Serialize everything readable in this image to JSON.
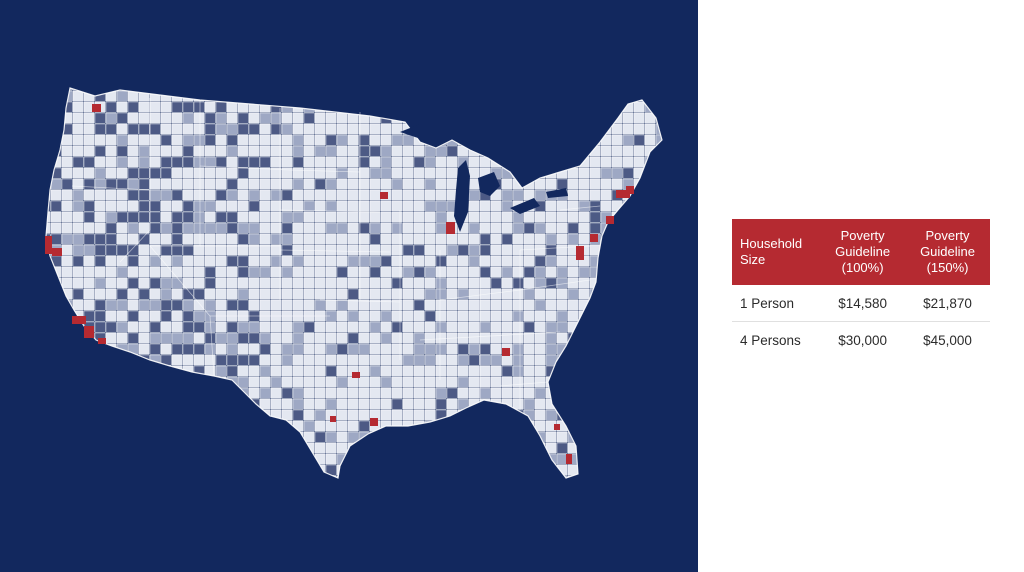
{
  "map": {
    "colors": {
      "background": "#12285e",
      "land_light": "#e4e8f1",
      "land_mid": "#9ea8c4",
      "land_dark": "#4d5a85",
      "highlight": "#b52a31"
    },
    "legend": "none"
  },
  "table": {
    "header_color": "#b52a31",
    "headers": {
      "size": "Household Size",
      "g100_line1": "Poverty",
      "g100_line2": "Guideline",
      "g100_line3": "(100%)",
      "g150_line1": "Poverty",
      "g150_line2": "Guideline",
      "g150_line3": "(150%)"
    },
    "rows": [
      {
        "size": "1 Person",
        "g100": "$14,580",
        "g150": "$21,870"
      },
      {
        "size": "4 Persons",
        "g100": "$30,000",
        "g150": "$45,000"
      }
    ]
  }
}
